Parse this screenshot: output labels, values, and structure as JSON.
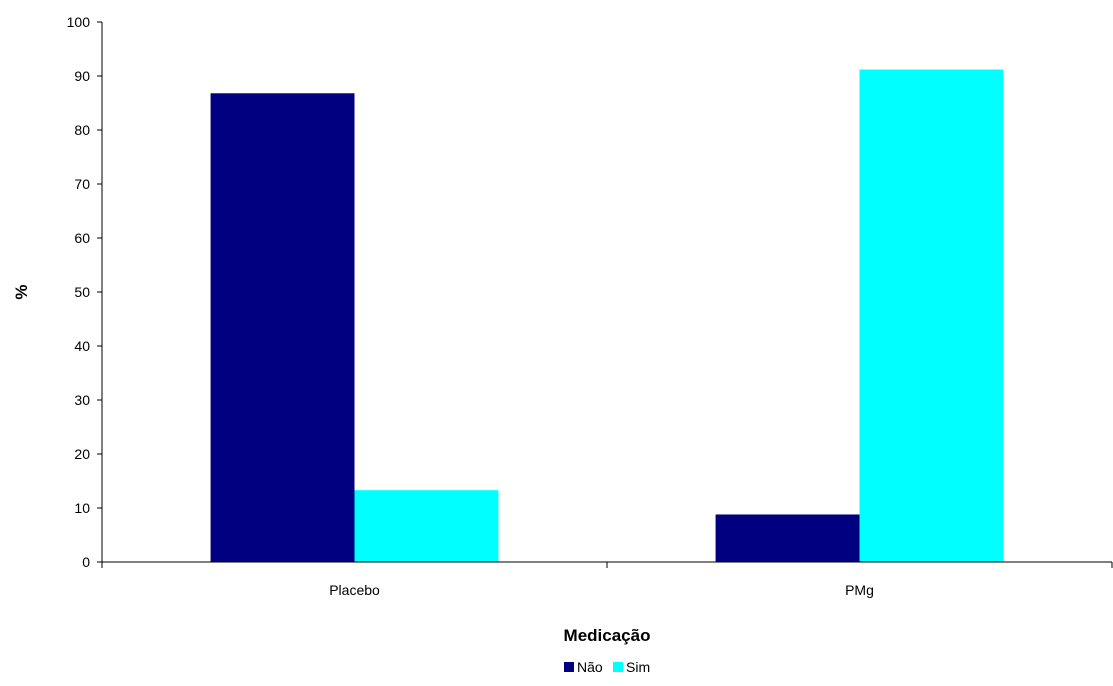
{
  "chart_data": {
    "type": "bar",
    "xlabel": "Medicação",
    "ylabel": "%",
    "ylim": [
      0,
      100
    ],
    "yticks": [
      0,
      10,
      20,
      30,
      40,
      50,
      60,
      70,
      80,
      90,
      100
    ],
    "grid": false,
    "legend_position": "bottom",
    "categories": [
      "Placebo",
      "PMg"
    ],
    "series": [
      {
        "name": "Não",
        "color": "#000080",
        "values": [
          86.8,
          8.8
        ]
      },
      {
        "name": "Sim",
        "color": "#00FFFF",
        "values": [
          13.3,
          91.2
        ]
      }
    ]
  }
}
